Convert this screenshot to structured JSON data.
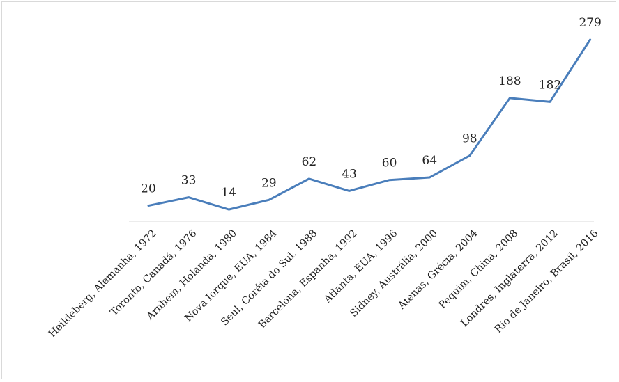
{
  "chart_data": {
    "type": "line",
    "title": "",
    "xlabel": "",
    "ylabel": "",
    "categories": [
      "Heildeberg, Alemanha, 1972",
      "Toronto, Canadá, 1976",
      "Arnhem, Holanda, 1980",
      "Nova Iorque, EUA, 1984",
      "Seul, Coréia do Sul, 1988",
      "Barcelona, Espanha, 1992",
      "Atlanta, EUA, 1996",
      "Sidney, Austrália, 2000",
      "Atenas, Grécia, 2004",
      "Pequim, China, 2008",
      "Londres, Inglaterra, 2012",
      "Rio de Janeiro, Brasil, 2016"
    ],
    "series": [
      {
        "values": [
          20,
          33,
          14,
          29,
          62,
          43,
          60,
          64,
          98,
          188,
          182,
          279
        ],
        "data_labels": [
          "20",
          "33",
          "14",
          "29",
          "62",
          "43",
          "60",
          "64",
          "98",
          "188",
          "182",
          "279"
        ],
        "color": "#4a7ebb"
      }
    ],
    "ylim": [
      0,
      279
    ],
    "grid": false,
    "legend": "none",
    "axis_color": "#d9d9d9"
  }
}
